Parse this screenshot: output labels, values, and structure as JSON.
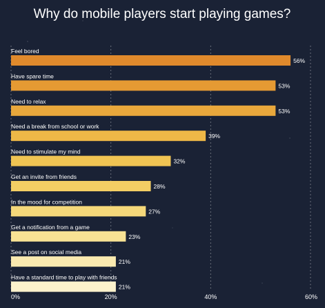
{
  "chart_data": {
    "type": "bar",
    "title": "Why do mobile players start playing games?",
    "orientation": "horizontal",
    "categories": [
      "Feel bored",
      "Have spare time",
      "Need to relax",
      "Need a break from school or work",
      "Need to stimulate my mind",
      "Get an invite from friends",
      "In the mood for competition",
      "Get a notification from a game",
      "See a post on social media",
      "Have a standard time to play with friends"
    ],
    "values": [
      56,
      53,
      53,
      39,
      32,
      28,
      27,
      23,
      21,
      21
    ],
    "value_labels": [
      "56%",
      "53%",
      "53%",
      "39%",
      "32%",
      "28%",
      "27%",
      "23%",
      "21%",
      "21%"
    ],
    "bar_colors": [
      "#e08a2c",
      "#e59a33",
      "#e9a83c",
      "#eeb847",
      "#f0c453",
      "#f3ce64",
      "#f5d87a",
      "#f8e294",
      "#faeab0",
      "#fcf2cc"
    ],
    "xlim": [
      0,
      60
    ],
    "x_ticks": [
      "0%",
      "20%",
      "40%",
      "60%"
    ],
    "grid": true,
    "background_color": "#1a2235"
  }
}
